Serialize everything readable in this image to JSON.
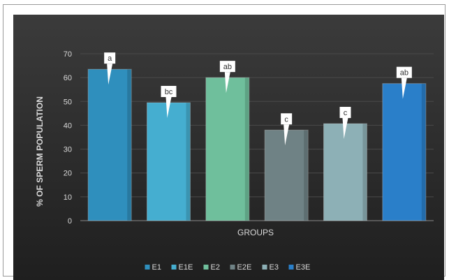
{
  "chart_data": {
    "type": "bar",
    "title": "",
    "xlabel": "GROUPS",
    "ylabel": "% OF SPERM POPULATION",
    "ylim": [
      0,
      70
    ],
    "yticks": [
      0,
      10,
      20,
      30,
      40,
      50,
      60,
      70
    ],
    "grid": true,
    "legend_position": "bottom",
    "categories": [
      "E1",
      "E1E",
      "E2",
      "E2E",
      "E3",
      "E3E"
    ],
    "values": [
      63.5,
      49.5,
      60.0,
      38.0,
      40.7,
      57.5
    ],
    "annotations": [
      "a",
      "bc",
      "ab",
      "c",
      "c",
      "ab"
    ],
    "colors": [
      "#2f8fbd",
      "#45aed0",
      "#6fbf9c",
      "#6f8285",
      "#8db0b6",
      "#2a7fc9"
    ]
  },
  "colors": {
    "background_top": "#3a3a3a",
    "background_bottom": "#222222",
    "axis_text": "#d9d9d9",
    "gridline": "#4a4a4a"
  }
}
